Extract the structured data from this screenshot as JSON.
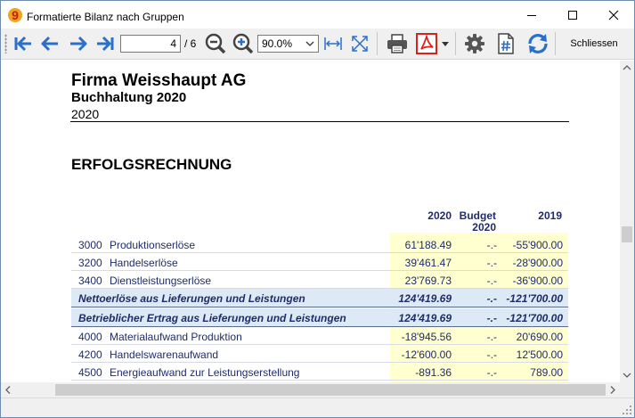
{
  "window": {
    "title": "Formatierte Bilanz nach Gruppen"
  },
  "toolbar": {
    "page_current": "4",
    "page_total": "/ 6",
    "zoom": "90.0%",
    "close_label": "Schliessen"
  },
  "report": {
    "company": "Firma Weisshaupt AG",
    "subtitle": "Buchhaltung 2020",
    "year": "2020",
    "section": "ERFOLGSRECHNUNG",
    "headers": {
      "col1": "2020",
      "col2a": "Budget",
      "col2b": "2020",
      "col3": "2019"
    },
    "rows": [
      {
        "num": "3000",
        "name": "Produktionserlöse",
        "v1": "61'188.49",
        "v2": "-.-",
        "v3": "-55'900.00"
      },
      {
        "num": "3200",
        "name": "Handelserlöse",
        "v1": "39'461.47",
        "v2": "-.-",
        "v3": "-28'900.00"
      },
      {
        "num": "3400",
        "name": "Dienstleistungserlöse",
        "v1": "23'769.73",
        "v2": "-.-",
        "v3": "-36'900.00"
      }
    ],
    "totals": [
      {
        "label": "Nettoerlöse aus Lieferungen und Leistungen",
        "v1": "124'419.69",
        "v2": "-.-",
        "v3": "-121'700.00"
      },
      {
        "label": "Betrieblicher Ertrag aus Lieferungen und Leistungen",
        "v1": "124'419.69",
        "v2": "-.-",
        "v3": "-121'700.00"
      }
    ],
    "rows2": [
      {
        "num": "4000",
        "name": "Materialaufwand Produktion",
        "v1": "-18'945.56",
        "v2": "-.-",
        "v3": "20'690.00"
      },
      {
        "num": "4200",
        "name": "Handelswarenaufwand",
        "v1": "-12'600.00",
        "v2": "-.-",
        "v3": "12'500.00"
      },
      {
        "num": "4500",
        "name": "Energieaufwand zur Leistungserstellung",
        "v1": "-891.36",
        "v2": "-.-",
        "v3": "789.00"
      }
    ]
  },
  "colors": {
    "accent_blue": "#2a6fc9",
    "text_navy": "#1f2c6b",
    "pdf_red": "#d8241c",
    "highlight_yellow": "#ffffd0",
    "total_bg": "#dde9f4"
  }
}
